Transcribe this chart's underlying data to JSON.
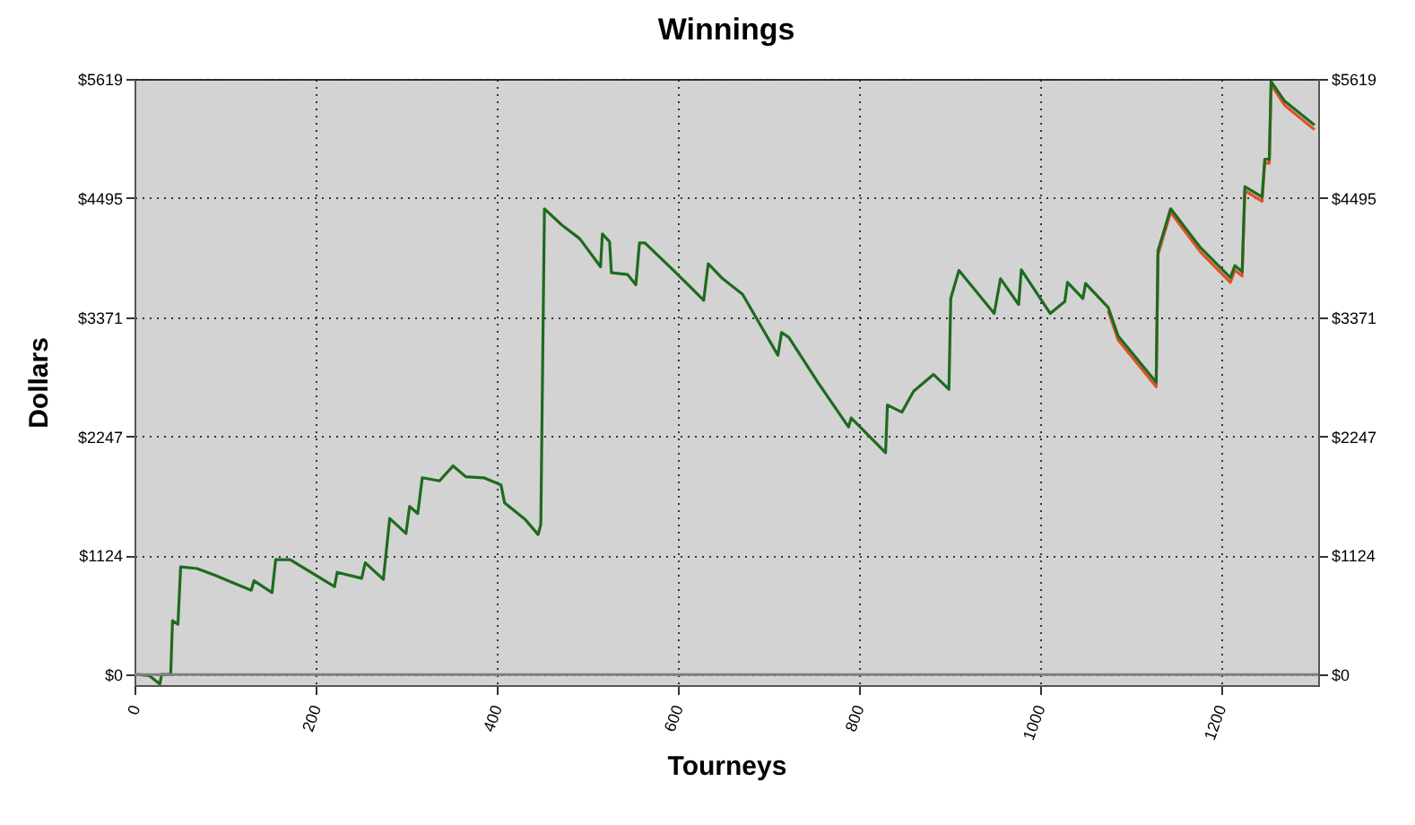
{
  "chart_data": {
    "type": "line",
    "title": "Winnings",
    "xlabel": "Tourneys",
    "ylabel": "Dollars",
    "xlim": [
      0,
      1308
    ],
    "xticks": [
      0,
      200,
      400,
      600,
      800,
      1000,
      1200
    ],
    "ylim": [
      -100,
      5619
    ],
    "yticks": [
      {
        "value": 0,
        "label": "$0"
      },
      {
        "value": 1124,
        "label": "$1124"
      },
      {
        "value": 2247,
        "label": "$2247"
      },
      {
        "value": 3371,
        "label": "$3371"
      },
      {
        "value": 4495,
        "label": "$4495"
      },
      {
        "value": 5619,
        "label": "$5619"
      }
    ],
    "y2lim": [
      -100,
      5619
    ],
    "y2ticks": [
      {
        "value": 0,
        "label": "$0"
      },
      {
        "value": 1124,
        "label": "$1124"
      },
      {
        "value": 2247,
        "label": "$2247"
      },
      {
        "value": 3371,
        "label": "$3371"
      },
      {
        "value": 4495,
        "label": "$4495"
      },
      {
        "value": 5619,
        "label": "$5619"
      }
    ],
    "grid": true,
    "line_style": "solid",
    "ref_lines": [
      {
        "axis": "y",
        "value": 0,
        "color": "#808080"
      }
    ],
    "series": [
      {
        "color": "#e0502a",
        "x": [
          1076,
          1087,
          1129,
          1131,
          1145,
          1178,
          1211,
          1216,
          1224,
          1227,
          1246,
          1249,
          1254,
          1256,
          1271,
          1304
        ],
        "values": [
          3430,
          3155,
          2715,
          3960,
          4360,
          3985,
          3700,
          3815,
          3760,
          4565,
          4465,
          4825,
          4825,
          5565,
          5370,
          5140
        ]
      },
      {
        "color": "#1e6b1e",
        "x": [
          3,
          16,
          28,
          30,
          40,
          42,
          48,
          51,
          69,
          89,
          129,
          132,
          152,
          156,
          172,
          221,
          224,
          251,
          255,
          275,
          282,
          300,
          304,
          313,
          318,
          337,
          352,
          366,
          386,
          405,
          409,
          432,
          446,
          449,
          453,
          472,
          492,
          515,
          517,
          525,
          527,
          545,
          554,
          558,
          564,
          597,
          629,
          634,
          650,
          672,
          711,
          715,
          723,
          756,
          789,
          792,
          830,
          832,
          848,
          861,
          883,
          900,
          902,
          911,
          950,
          957,
          977,
          980,
          1012,
          1028,
          1031,
          1048,
          1051,
          1076,
          1087,
          1129,
          1131,
          1145,
          1178,
          1211,
          1216,
          1224,
          1227,
          1246,
          1249,
          1254,
          1256,
          1271,
          1304
        ],
        "values": [
          0,
          -10,
          -90,
          0,
          0,
          508,
          475,
          1015,
          1000,
          936,
          795,
          885,
          773,
          1083,
          1083,
          829,
          964,
          908,
          1054,
          897,
          1472,
          1331,
          1585,
          1518,
          1856,
          1827,
          1968,
          1866,
          1856,
          1788,
          1619,
          1460,
          1320,
          1416,
          4394,
          4242,
          4112,
          3846,
          4157,
          4083,
          3790,
          3773,
          3677,
          4072,
          4072,
          3801,
          3531,
          3875,
          3734,
          3587,
          3012,
          3227,
          3181,
          2746,
          2335,
          2420,
          2093,
          2543,
          2475,
          2673,
          2831,
          2690,
          3548,
          3812,
          3406,
          3734,
          3491,
          3819,
          3406,
          3519,
          3700,
          3548,
          3689,
          3463,
          3193,
          2758,
          3998,
          4394,
          4027,
          3745,
          3858,
          3801,
          4602,
          4506,
          4861,
          4861,
          5595,
          5409,
          5183
        ]
      }
    ]
  }
}
